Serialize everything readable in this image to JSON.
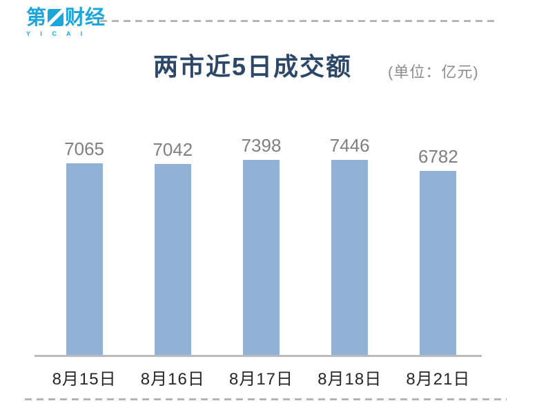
{
  "brand": {
    "logo_prefix": "第",
    "logo_suffix": "财经",
    "logo_subtext": "Y I C A I",
    "logo_color": "#1ba6dc"
  },
  "header": {
    "title": "两市近5日成交额",
    "title_color": "#2d4768",
    "unit_label": "(单位：亿元)"
  },
  "chart_data": {
    "type": "bar",
    "title": "两市近5日成交额",
    "unit": "亿元",
    "categories": [
      "8月15日",
      "8月16日",
      "8月17日",
      "8月18日",
      "8月21日"
    ],
    "values": [
      7065,
      7042,
      7398,
      7446,
      6782
    ],
    "bar_color": "#93b0d7",
    "value_label_color": "#7f7f7f",
    "category_label_color": "#262626",
    "ylim": [
      0,
      7800
    ],
    "grid": false,
    "legend": false,
    "data_labels_position": "above-bars"
  }
}
